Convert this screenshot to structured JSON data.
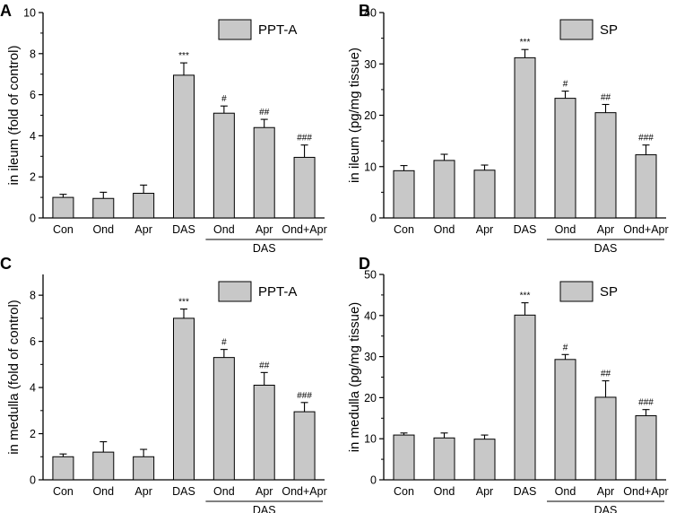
{
  "chart_data": [
    {
      "type": "bar",
      "panel": "A",
      "legend": "PPT-A",
      "ylabel": "in ileum (fold of control)",
      "ylim": [
        0,
        10
      ],
      "yticks": [
        0,
        2,
        4,
        6,
        8,
        10
      ],
      "categories": [
        "Con",
        "Ond",
        "Apr",
        "DAS",
        "Ond",
        "Apr",
        "Ond+Apr"
      ],
      "values": [
        1.0,
        0.95,
        1.2,
        6.95,
        5.1,
        4.4,
        2.95
      ],
      "errors": [
        0.15,
        0.3,
        0.4,
        0.6,
        0.35,
        0.4,
        0.6
      ],
      "significance": [
        "",
        "",
        "",
        "***",
        "#",
        "##",
        "###"
      ],
      "group_label": "DAS"
    },
    {
      "type": "bar",
      "panel": "B",
      "legend": "SP",
      "ylabel": "in ileum (pg/mg tissue)",
      "ylim": [
        0,
        40
      ],
      "yticks": [
        0,
        10,
        20,
        30,
        40
      ],
      "categories": [
        "Con",
        "Ond",
        "Apr",
        "DAS",
        "Ond",
        "Apr",
        "Ond+Apr"
      ],
      "values": [
        9.2,
        11.2,
        9.3,
        31.2,
        23.3,
        20.5,
        12.3
      ],
      "errors": [
        1.0,
        1.2,
        1.0,
        1.6,
        1.4,
        1.6,
        1.9
      ],
      "significance": [
        "",
        "",
        "",
        "***",
        "#",
        "##",
        "###"
      ],
      "group_label": "DAS"
    },
    {
      "type": "bar",
      "panel": "C",
      "legend": "PPT-A",
      "ylabel": "in medulla (fold of control)",
      "ylim": [
        0,
        8.9
      ],
      "yticks": [
        0,
        2,
        4,
        6,
        8
      ],
      "categories": [
        "Con",
        "Ond",
        "Apr",
        "DAS",
        "Ond",
        "Apr",
        "Ond+Apr"
      ],
      "values": [
        1.0,
        1.2,
        1.0,
        7.0,
        5.3,
        4.1,
        2.95
      ],
      "errors": [
        0.12,
        0.45,
        0.32,
        0.4,
        0.35,
        0.55,
        0.4
      ],
      "significance": [
        "",
        "",
        "",
        "***",
        "#",
        "##",
        "###"
      ],
      "group_label": "DAS"
    },
    {
      "type": "bar",
      "panel": "D",
      "legend": "SP",
      "ylabel": "in medulla (pg/mg tissue)",
      "ylim": [
        0,
        50
      ],
      "yticks": [
        0,
        10,
        20,
        30,
        40,
        50
      ],
      "categories": [
        "Con",
        "Ond",
        "Apr",
        "DAS",
        "Ond",
        "Apr",
        "Ond+Apr"
      ],
      "values": [
        10.9,
        10.2,
        9.9,
        40.1,
        29.3,
        20.1,
        15.6
      ],
      "errors": [
        0.5,
        1.2,
        1.0,
        3.0,
        1.2,
        4.0,
        1.5
      ],
      "significance": [
        "",
        "",
        "",
        "***",
        "#",
        "##",
        "###"
      ],
      "group_label": "DAS"
    }
  ],
  "colors": {
    "bar_fill": "#c8c8c8",
    "bar_stroke": "#000000",
    "axis": "#000000"
  }
}
